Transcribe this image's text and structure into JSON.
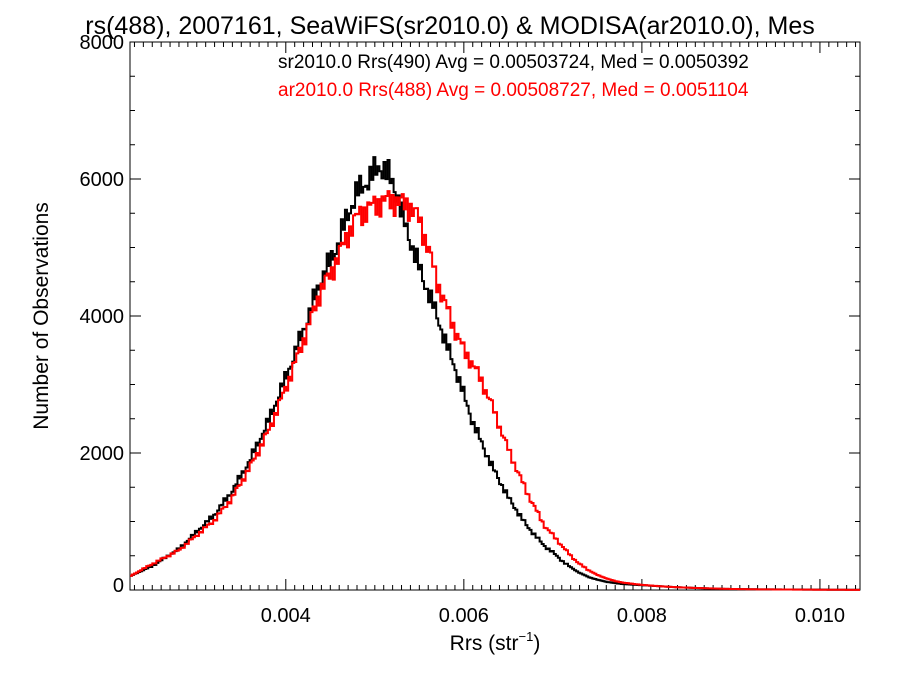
{
  "chart_data": {
    "type": "line",
    "title": "rs(488), 2007161, SeaWiFS(sr2010.0) & MODISA(ar2010.0), Mes",
    "xlabel": "Rrs (str",
    "xlabel_sup": "−1",
    "xlabel_close": ")",
    "ylabel": "Number of Observations",
    "xlim": [
      0.00225,
      0.01045
    ],
    "ylim": [
      0,
      8000
    ],
    "xticks": [
      0.004,
      0.006,
      0.008,
      0.01
    ],
    "xtick_labels": [
      "0.004",
      "0.006",
      "0.008",
      "0.010"
    ],
    "yticks": [
      0,
      2000,
      4000,
      6000,
      8000
    ],
    "ytick_labels": [
      "0",
      "2000",
      "4000",
      "6000",
      "8000"
    ],
    "grid": false,
    "legend_position": "top-right",
    "series": [
      {
        "name": "sr2010.0 Rrs(490) Avg = 0.00503724, Med = 0.0050392",
        "color": "#000000",
        "x": [
          0.00225,
          0.0025,
          0.0028,
          0.003,
          0.0032,
          0.0034,
          0.0036,
          0.0038,
          0.004,
          0.0042,
          0.0044,
          0.0045,
          0.0046,
          0.0047,
          0.0048,
          0.0049,
          0.005,
          0.00505,
          0.0051,
          0.00515,
          0.0052,
          0.00525,
          0.0053,
          0.0054,
          0.0055,
          0.0056,
          0.0057,
          0.0058,
          0.0059,
          0.006,
          0.0061,
          0.0062,
          0.0063,
          0.0064,
          0.0065,
          0.0066,
          0.0067,
          0.0068,
          0.0069,
          0.007,
          0.0071,
          0.0072,
          0.0073,
          0.0074,
          0.0075,
          0.0076,
          0.0077,
          0.0078,
          0.008,
          0.0082,
          0.0084,
          0.0086,
          0.0088,
          0.009,
          0.0093,
          0.0096,
          0.01,
          0.01045
        ],
        "y": [
          200,
          350,
          600,
          850,
          1100,
          1450,
          1900,
          2450,
          3100,
          3800,
          4550,
          4800,
          5100,
          5500,
          5800,
          5950,
          6100,
          6200,
          6150,
          6050,
          5950,
          5800,
          5500,
          5100,
          4700,
          4350,
          4000,
          3600,
          3250,
          2850,
          2450,
          2150,
          1850,
          1600,
          1350,
          1150,
          950,
          800,
          650,
          550,
          430,
          330,
          250,
          190,
          150,
          120,
          100,
          85,
          70,
          55,
          40,
          30,
          20,
          15,
          10,
          8,
          5,
          3
        ]
      },
      {
        "name": "ar2010.0 Rrs(488) Avg = 0.00508727, Med = 0.0051104",
        "color": "#ff0000",
        "x": [
          0.00225,
          0.0025,
          0.0028,
          0.003,
          0.0032,
          0.0034,
          0.0036,
          0.0038,
          0.004,
          0.0042,
          0.0044,
          0.0045,
          0.0046,
          0.0047,
          0.0048,
          0.0049,
          0.005,
          0.0051,
          0.0052,
          0.0053,
          0.0054,
          0.0055,
          0.0056,
          0.0057,
          0.0058,
          0.0059,
          0.006,
          0.0061,
          0.0062,
          0.0063,
          0.0064,
          0.0065,
          0.0066,
          0.0067,
          0.0068,
          0.0069,
          0.007,
          0.0071,
          0.0072,
          0.0073,
          0.0074,
          0.0075,
          0.0076,
          0.0077,
          0.0078,
          0.008,
          0.0082,
          0.0084,
          0.0086,
          0.0088,
          0.009,
          0.0093,
          0.0096,
          0.01,
          0.01045
        ],
        "y": [
          200,
          380,
          580,
          800,
          1020,
          1350,
          1800,
          2300,
          2950,
          3650,
          4400,
          4600,
          4900,
          5200,
          5450,
          5550,
          5620,
          5680,
          5690,
          5650,
          5600,
          5400,
          5000,
          4500,
          4150,
          3800,
          3500,
          3300,
          3050,
          2750,
          2400,
          2050,
          1750,
          1450,
          1200,
          950,
          800,
          650,
          500,
          380,
          290,
          220,
          170,
          130,
          105,
          75,
          55,
          40,
          30,
          22,
          15,
          10,
          7,
          4,
          2
        ]
      }
    ]
  }
}
